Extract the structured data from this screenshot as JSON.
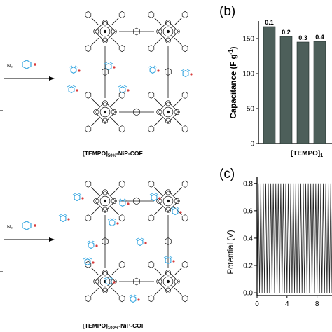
{
  "left": {
    "top_reagent": "N₃",
    "top_label_prefix": "[TEMPO]",
    "top_label_sub": "50%",
    "top_label_suffix": "-NiP-COF",
    "bottom_reagent": "N₃",
    "bottom_label_prefix": "[TEMPO]",
    "bottom_label_sub": "100%",
    "bottom_label_suffix": "-NiP-COF"
  },
  "panel_b": {
    "tag": "(b)",
    "ylabel": "Capacitance (F g",
    "ylabel_exp": "-1",
    "ylabel_close": ")",
    "xlabel": "[TEMPO]",
    "xlabel_sub": "1",
    "bar_color": "#4d5f5a"
  },
  "panel_c": {
    "tag": "(c)",
    "ylabel": "Potential (V)"
  },
  "chart_data": [
    {
      "type": "bar",
      "categories": [
        "0.1",
        "0.2",
        "0.3",
        "0.4"
      ],
      "values": [
        167,
        153,
        145,
        146
      ],
      "ylim": [
        0,
        175
      ],
      "yticks": [
        "0",
        "50",
        "100",
        "150"
      ],
      "grid": false
    },
    {
      "type": "line",
      "xlim": [
        0,
        10
      ],
      "ylim": [
        -0.02,
        0.85
      ],
      "xticks": [
        "0",
        "4",
        "8"
      ],
      "yticks": [
        "0.0",
        "0.2",
        "0.4",
        "0.6",
        "0.8"
      ],
      "potential_min": 0.0,
      "potential_max": 0.8,
      "cycles_visible": 30,
      "grid": false
    }
  ]
}
